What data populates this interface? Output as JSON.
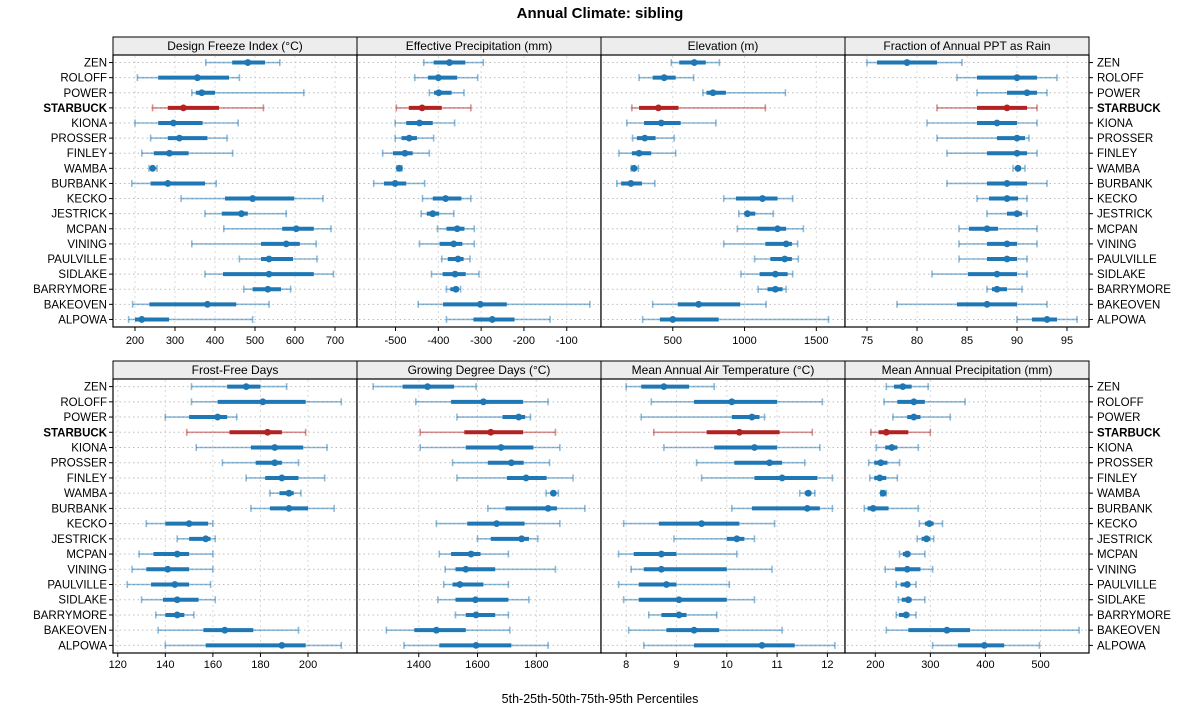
{
  "title": "Annual Climate: sibling",
  "caption": "5th-25th-50th-75th-95th Percentiles",
  "colors": {
    "series": "#1f77b4",
    "series_light": "rgba(31,119,180,0.5)",
    "highlight": "#b22222",
    "highlight_light": "rgba(178,34,34,0.5)",
    "strip_bg": "#ededed",
    "panel_border": "#000000",
    "gridline": "#d8d8d8",
    "row_guide": "#bdbdbd",
    "text": "#000000"
  },
  "chart_data": {
    "type": "dot-whisker",
    "percentiles": [
      5,
      25,
      50,
      75,
      95
    ],
    "legend_note": "thin line = 5th-95th, thick line = 25th-75th, dot = 50th percentile",
    "highlight_station": "STARBUCK",
    "stations": [
      "ZEN",
      "ROLOFF",
      "POWER",
      "STARBUCK",
      "KIONA",
      "PROSSER",
      "FINLEY",
      "WAMBA",
      "BURBANK",
      "KECKO",
      "JESTRICK",
      "MCPAN",
      "VINING",
      "PAULVILLE",
      "SIDLAKE",
      "BARRYMORE",
      "BAKEOVEN",
      "ALPOWA"
    ],
    "panels": [
      {
        "title": "Design Freeze Index (°C)",
        "row": 0,
        "col": 0,
        "xlim": [
          145,
          755
        ],
        "ticks": [
          200,
          300,
          400,
          500,
          600,
          700
        ],
        "series": [
          [
            377,
            443,
            482,
            525,
            562
          ],
          [
            206,
            258,
            356,
            435,
            461
          ],
          [
            342,
            352,
            367,
            400,
            622
          ],
          [
            244,
            282,
            321,
            410,
            521
          ],
          [
            200,
            258,
            296,
            369,
            458
          ],
          [
            239,
            282,
            311,
            381,
            430
          ],
          [
            217,
            247,
            286,
            334,
            444
          ],
          [
            235,
            239,
            244,
            250,
            255
          ],
          [
            192,
            239,
            282,
            375,
            403
          ],
          [
            315,
            425,
            494,
            598,
            670
          ],
          [
            375,
            417,
            466,
            482,
            578
          ],
          [
            422,
            568,
            603,
            647,
            690
          ],
          [
            342,
            515,
            578,
            612,
            653
          ],
          [
            461,
            515,
            535,
            595,
            655
          ],
          [
            375,
            420,
            535,
            647,
            696
          ],
          [
            472,
            494,
            532,
            565,
            589
          ],
          [
            194,
            236,
            381,
            453,
            535
          ],
          [
            184,
            200,
            217,
            285,
            494
          ]
        ]
      },
      {
        "title": "Effective Precipitation (mm)",
        "row": 0,
        "col": 1,
        "xlim": [
          -590,
          -20
        ],
        "ticks": [
          -500,
          -400,
          -300,
          -200,
          -100
        ],
        "series": [
          [
            -434,
            -411,
            -374,
            -337,
            -295
          ],
          [
            -455,
            -424,
            -400,
            -356,
            -308
          ],
          [
            -421,
            -410,
            -399,
            -369,
            -340
          ],
          [
            -498,
            -469,
            -438,
            -392,
            -324
          ],
          [
            -501,
            -475,
            -444,
            -413,
            -362
          ],
          [
            -501,
            -486,
            -468,
            -450,
            -411
          ],
          [
            -530,
            -506,
            -478,
            -460,
            -421
          ],
          [
            -497,
            -494,
            -491,
            -488,
            -485
          ],
          [
            -551,
            -527,
            -501,
            -475,
            -432
          ],
          [
            -437,
            -413,
            -383,
            -346,
            -324
          ],
          [
            -440,
            -427,
            -413,
            -398,
            -364
          ],
          [
            -402,
            -381,
            -356,
            -339,
            -316
          ],
          [
            -444,
            -397,
            -364,
            -344,
            -316
          ],
          [
            -392,
            -378,
            -354,
            -341,
            -326
          ],
          [
            -416,
            -390,
            -361,
            -336,
            -305
          ],
          [
            -381,
            -372,
            -359,
            -352,
            -348
          ],
          [
            -447,
            -389,
            -302,
            -240,
            -46
          ],
          [
            -381,
            -318,
            -274,
            -222,
            -139
          ]
        ]
      },
      {
        "title": "Elevation (m)",
        "row": 0,
        "col": 2,
        "xlim": [
          0,
          1700
        ],
        "ticks": [
          500,
          1000,
          1500
        ],
        "series": [
          [
            490,
            545,
            650,
            730,
            825
          ],
          [
            265,
            360,
            440,
            520,
            645
          ],
          [
            710,
            735,
            780,
            870,
            1285
          ],
          [
            215,
            265,
            400,
            540,
            1145
          ],
          [
            180,
            300,
            420,
            555,
            800
          ],
          [
            220,
            250,
            305,
            380,
            510
          ],
          [
            125,
            215,
            265,
            350,
            520
          ],
          [
            210,
            222,
            230,
            240,
            260
          ],
          [
            110,
            140,
            208,
            285,
            375
          ],
          [
            855,
            940,
            1125,
            1230,
            1335
          ],
          [
            960,
            1000,
            1020,
            1075,
            1200
          ],
          [
            950,
            1090,
            1230,
            1290,
            1410
          ],
          [
            855,
            1145,
            1290,
            1330,
            1370
          ],
          [
            1070,
            1180,
            1280,
            1330,
            1375
          ],
          [
            975,
            1105,
            1215,
            1300,
            1335
          ],
          [
            1095,
            1160,
            1215,
            1265,
            1290
          ],
          [
            360,
            535,
            680,
            970,
            1150
          ],
          [
            290,
            410,
            500,
            820,
            1585
          ]
        ]
      },
      {
        "title": "Fraction of Annual PPT as Rain",
        "row": 0,
        "col": 3,
        "xlim": [
          72.8,
          97.2
        ],
        "ticks": [
          75,
          80,
          85,
          90,
          95
        ],
        "series": [
          [
            75,
            76,
            79,
            82,
            84.5
          ],
          [
            84,
            86,
            90,
            92,
            94
          ],
          [
            86,
            89,
            91,
            92,
            93
          ],
          [
            82,
            86,
            89,
            91,
            92
          ],
          [
            81,
            86,
            88,
            90,
            92
          ],
          [
            82,
            88,
            90,
            90.8,
            91.2
          ],
          [
            83,
            87,
            90,
            91,
            92
          ],
          [
            89.6,
            89.9,
            90.1,
            90.4,
            90.8
          ],
          [
            83,
            87,
            89,
            91,
            93
          ],
          [
            86,
            87.2,
            89,
            90.1,
            91
          ],
          [
            87,
            89,
            90,
            90.5,
            91
          ],
          [
            84.2,
            85.2,
            87,
            88.1,
            92
          ],
          [
            84.2,
            87,
            89,
            90,
            92
          ],
          [
            84.2,
            87,
            89,
            90,
            91
          ],
          [
            81.5,
            85.1,
            88,
            90,
            91
          ],
          [
            87,
            87.5,
            88,
            89,
            90.5
          ],
          [
            78,
            84,
            87,
            90,
            93
          ],
          [
            90,
            91.5,
            93,
            94,
            96
          ]
        ]
      },
      {
        "title": "Frost-Free Days",
        "row": 1,
        "col": 0,
        "xlim": [
          118,
          220.6
        ],
        "ticks": [
          120,
          140,
          160,
          180,
          200
        ],
        "series": [
          [
            151,
            166,
            174,
            180,
            191
          ],
          [
            151,
            162,
            181,
            199,
            214
          ],
          [
            140,
            150,
            162,
            166,
            170
          ],
          [
            149,
            167,
            183,
            189,
            199
          ],
          [
            153,
            176,
            186,
            198,
            208
          ],
          [
            164,
            178,
            186,
            189,
            196
          ],
          [
            174,
            182,
            189,
            196,
            207
          ],
          [
            184,
            188,
            192,
            194,
            197
          ],
          [
            176,
            184,
            192,
            200,
            211
          ],
          [
            132,
            140,
            150,
            158,
            160
          ],
          [
            145,
            150,
            157,
            159,
            161
          ],
          [
            129,
            135,
            145,
            150,
            160
          ],
          [
            126,
            132,
            141,
            150,
            160
          ],
          [
            124,
            134,
            144,
            150,
            159
          ],
          [
            130,
            139,
            145,
            154,
            161
          ],
          [
            136,
            140,
            145,
            148,
            152
          ],
          [
            137,
            156,
            165,
            177,
            196
          ],
          [
            140,
            157,
            189,
            199,
            214
          ]
        ]
      },
      {
        "title": "Growing Degree Days (°C)",
        "row": 1,
        "col": 1,
        "xlim": [
          1190,
          2020
        ],
        "ticks": [
          1400,
          1600,
          1800
        ],
        "series": [
          [
            1245,
            1345,
            1430,
            1520,
            1595
          ],
          [
            1390,
            1510,
            1620,
            1755,
            1840
          ],
          [
            1530,
            1685,
            1740,
            1762,
            1780
          ],
          [
            1405,
            1555,
            1645,
            1755,
            1865
          ],
          [
            1405,
            1560,
            1680,
            1790,
            1880
          ],
          [
            1515,
            1635,
            1715,
            1757,
            1845
          ],
          [
            1530,
            1700,
            1765,
            1835,
            1925
          ],
          [
            1833,
            1848,
            1858,
            1866,
            1875
          ],
          [
            1635,
            1695,
            1840,
            1870,
            1965
          ],
          [
            1460,
            1565,
            1665,
            1760,
            1880
          ],
          [
            1600,
            1645,
            1750,
            1775,
            1805
          ],
          [
            1470,
            1510,
            1578,
            1610,
            1705
          ],
          [
            1490,
            1525,
            1560,
            1660,
            1865
          ],
          [
            1485,
            1515,
            1540,
            1620,
            1705
          ],
          [
            1465,
            1525,
            1593,
            1705,
            1775
          ],
          [
            1525,
            1560,
            1595,
            1660,
            1705
          ],
          [
            1290,
            1385,
            1460,
            1560,
            1710
          ],
          [
            1350,
            1470,
            1595,
            1715,
            1840
          ]
        ]
      },
      {
        "title": "Mean Annual Air Temperature (°C)",
        "row": 1,
        "col": 2,
        "xlim": [
          7.5,
          12.35
        ],
        "ticks": [
          8,
          9,
          10,
          11,
          12
        ],
        "series": [
          [
            8.0,
            8.3,
            8.75,
            9.25,
            9.75
          ],
          [
            8.5,
            9.35,
            10.1,
            11.0,
            11.9
          ],
          [
            8.3,
            10.1,
            10.5,
            10.65,
            10.75
          ],
          [
            8.55,
            9.6,
            10.25,
            11.05,
            11.7
          ],
          [
            8.75,
            9.75,
            10.55,
            11.0,
            11.85
          ],
          [
            9.4,
            10.15,
            10.85,
            11.1,
            11.55
          ],
          [
            9.5,
            10.55,
            11.1,
            11.8,
            12.1
          ],
          [
            11.45,
            11.55,
            11.62,
            11.68,
            11.75
          ],
          [
            10.1,
            10.5,
            11.6,
            11.85,
            12.1
          ],
          [
            7.95,
            8.65,
            9.5,
            10.25,
            10.95
          ],
          [
            8.95,
            10.0,
            10.2,
            10.35,
            10.55
          ],
          [
            7.85,
            8.15,
            8.7,
            9.0,
            10.2
          ],
          [
            8.1,
            8.35,
            8.7,
            10.0,
            10.9
          ],
          [
            7.85,
            8.25,
            8.8,
            9.0,
            10.05
          ],
          [
            7.95,
            8.25,
            9.05,
            10.0,
            10.55
          ],
          [
            8.45,
            8.7,
            9.05,
            9.2,
            9.8
          ],
          [
            8.05,
            8.8,
            9.35,
            9.85,
            11.1
          ],
          [
            8.35,
            9.35,
            10.7,
            11.35,
            12.15
          ]
        ]
      },
      {
        "title": "Mean Annual Precipitation (mm)",
        "row": 1,
        "col": 3,
        "xlim": [
          145,
          588
        ],
        "ticks": [
          200,
          300,
          400,
          500
        ],
        "series": [
          [
            220,
            234,
            250,
            266,
            296
          ],
          [
            216,
            240,
            270,
            290,
            363
          ],
          [
            232,
            258,
            270,
            282,
            336
          ],
          [
            192,
            206,
            220,
            260,
            300
          ],
          [
            202,
            218,
            230,
            240,
            278
          ],
          [
            188,
            198,
            210,
            222,
            244
          ],
          [
            190,
            198,
            208,
            220,
            240
          ],
          [
            210,
            212,
            214,
            216,
            220
          ],
          [
            180,
            186,
            196,
            224,
            278
          ],
          [
            280,
            290,
            298,
            306,
            322
          ],
          [
            276,
            284,
            293,
            300,
            306
          ],
          [
            244,
            250,
            258,
            264,
            290
          ],
          [
            218,
            236,
            258,
            282,
            304
          ],
          [
            238,
            246,
            258,
            263,
            274
          ],
          [
            242,
            248,
            260,
            266,
            290
          ],
          [
            238,
            243,
            256,
            262,
            274
          ],
          [
            220,
            260,
            330,
            372,
            570
          ],
          [
            304,
            350,
            398,
            434,
            498
          ]
        ]
      }
    ]
  }
}
